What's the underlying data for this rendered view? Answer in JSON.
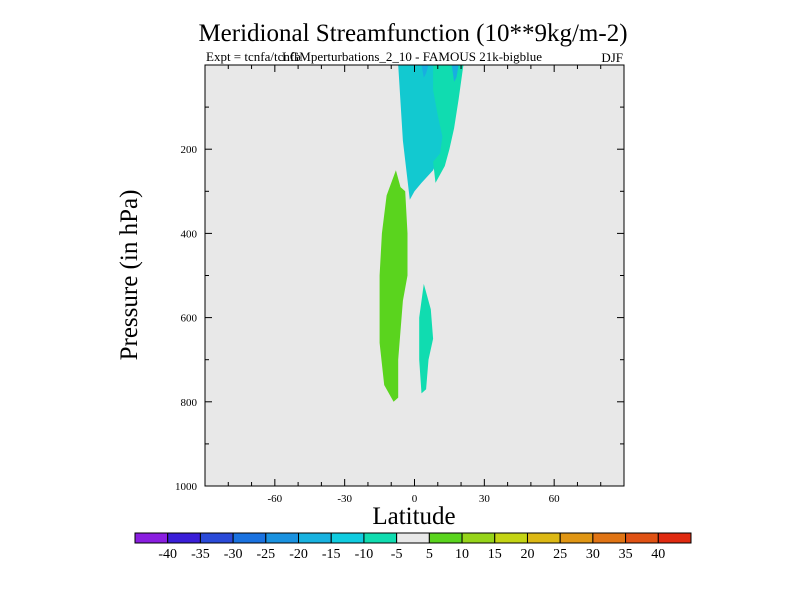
{
  "chart_data": {
    "type": "heatmap",
    "title": "Meridional Streamfunction (10**9kg/m-2)",
    "subtitle_left": "Expt = tcnfa/tcnfb",
    "subtitle_center": "LGMperturbations_2_10 - FAMOUS 21k-bigblue",
    "subtitle_right": "DJF",
    "xlabel": "Latitude",
    "ylabel": "Pressure (in hPa)",
    "xlim": [
      -90,
      90
    ],
    "ylim": [
      1000,
      0
    ],
    "x_ticks": [
      -60,
      -30,
      0,
      30,
      60
    ],
    "x_tick_labels": [
      "-60",
      "-30",
      "0",
      "30",
      "60"
    ],
    "y_ticks": [
      200,
      400,
      600,
      800,
      1000
    ],
    "y_tick_labels": [
      "200",
      "400",
      "600",
      "800",
      "1000"
    ],
    "background": "#e8e8e8",
    "colorbar": {
      "boundaries": [
        -45,
        -40,
        -35,
        -30,
        -25,
        -20,
        -15,
        -10,
        -5,
        5,
        10,
        15,
        20,
        25,
        30,
        35,
        40,
        45
      ],
      "labels": [
        "-40",
        "-35",
        "-30",
        "-25",
        "-20",
        "-15",
        "-10",
        "-5",
        "5",
        "10",
        "15",
        "20",
        "25",
        "30",
        "35",
        "40"
      ],
      "colors": [
        "#8a1ee0",
        "#3a1ed8",
        "#2a4ad8",
        "#1a72e0",
        "#1a92e0",
        "#18b2e0",
        "#10cce0",
        "#10dcb0",
        "#e8e8e8",
        "#5ad41e",
        "#96d41a",
        "#c4d414",
        "#dcb814",
        "#e09614",
        "#e07414",
        "#e05214",
        "#e02a10"
      ]
    },
    "regions": [
      {
        "name": "upper-cyan-cell",
        "range": "-10 to -5",
        "color": "#12c9d0",
        "outline": [
          [
            4,
            0
          ],
          [
            21,
            0
          ],
          [
            18,
            60
          ],
          [
            14,
            140
          ],
          [
            12,
            200
          ],
          [
            8,
            250
          ],
          [
            3,
            280
          ],
          [
            0,
            300
          ],
          [
            -2,
            320
          ],
          [
            -5,
            180
          ],
          [
            -7,
            0
          ]
        ]
      },
      {
        "name": "upper-teal-cell",
        "range": "-5 to -10 (teal)",
        "color": "#10dcb0",
        "outline": [
          [
            8,
            0
          ],
          [
            21,
            0
          ],
          [
            19,
            80
          ],
          [
            17,
            150
          ],
          [
            15,
            200
          ],
          [
            13,
            240
          ],
          [
            9,
            280
          ],
          [
            8,
            230
          ],
          [
            11,
            210
          ],
          [
            12,
            170
          ],
          [
            10,
            120
          ],
          [
            8,
            60
          ]
        ]
      },
      {
        "name": "core-blue-cell",
        "range": "-15 to -10",
        "color": "#18aee0",
        "outline": [
          [
            3,
            0
          ],
          [
            6,
            0
          ],
          [
            5,
            20
          ],
          [
            4,
            30
          ]
        ]
      },
      {
        "name": "right-blue-cell",
        "range": "-15 to -10",
        "color": "#18aee0",
        "outline": [
          [
            16,
            0
          ],
          [
            19,
            0
          ],
          [
            18,
            30
          ],
          [
            17,
            40
          ]
        ]
      },
      {
        "name": "lower-green-cell",
        "range": "5 to 10",
        "color": "#5ad41e",
        "outline": [
          [
            -6,
            290
          ],
          [
            -4,
            300
          ],
          [
            -3,
            400
          ],
          [
            -3,
            500
          ],
          [
            -5,
            560
          ],
          [
            -7,
            700
          ],
          [
            -7,
            790
          ],
          [
            -9,
            800
          ],
          [
            -13,
            760
          ],
          [
            -15,
            660
          ],
          [
            -15,
            500
          ],
          [
            -14,
            400
          ],
          [
            -12,
            310
          ],
          [
            -8,
            250
          ]
        ]
      },
      {
        "name": "lower-teal-cell",
        "range": "-10 to -5",
        "color": "#10dcb0",
        "outline": [
          [
            4,
            520
          ],
          [
            7,
            580
          ],
          [
            8,
            650
          ],
          [
            6,
            700
          ],
          [
            5,
            770
          ],
          [
            3,
            780
          ],
          [
            2,
            700
          ],
          [
            2,
            600
          ],
          [
            3,
            560
          ]
        ]
      }
    ]
  }
}
